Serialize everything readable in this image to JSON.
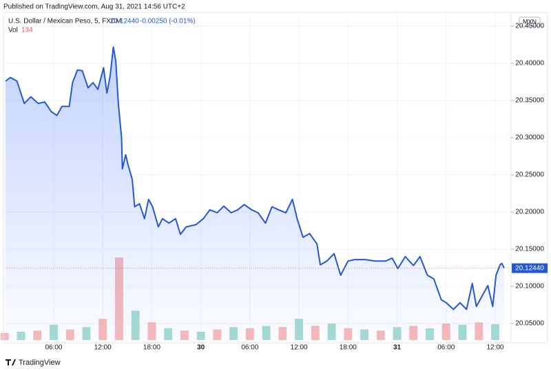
{
  "header": {
    "published": "Published on TradingView.com, Aug 31, 2021 14:56 UTC+2",
    "symbol": "U.S. Dollar / Mexican Peso, 5, FXCM",
    "price": "20.12440",
    "change": "-0.00250 (-0.01%)",
    "volume_label": "Vol",
    "volume_value": "134",
    "currency": "MXN"
  },
  "chart_data": {
    "type": "line",
    "x": [
      0.1,
      0.7,
      1.5,
      2.4,
      3.2,
      4.1,
      4.9,
      5.7,
      6.4,
      7.0,
      7.9,
      8.3,
      8.9,
      9.5,
      10.2,
      10.8,
      11.4,
      12.1,
      12.5,
      12.9,
      13.3,
      13.6,
      13.9,
      14.3,
      14.4,
      14.8,
      15.1,
      15.6,
      15.9,
      16.5,
      17.1,
      17.6,
      18.1,
      18.8,
      19.3,
      20.1,
      20.9,
      21.5,
      22.2,
      23.4,
      24.3,
      25.1,
      26.0,
      26.8,
      27.7,
      28.5,
      29.3,
      30.2,
      31.0,
      31.9,
      32.7,
      33.5,
      34.4,
      35.2,
      35.8,
      36.5,
      37.3,
      38.2,
      38.6,
      39.4,
      40.3,
      41.1,
      42.0,
      42.8,
      44.1,
      45.3,
      46.6,
      47.4,
      48.1,
      49.0,
      50.0,
      50.8,
      51.7,
      52.5,
      53.4,
      54.0,
      54.9,
      55.7,
      56.5,
      57.2,
      57.7,
      58.4,
      59.1,
      59.7,
      60.1,
      60.6,
      60.8,
      61.1
    ],
    "series": [
      {
        "name": "U.S. Dollar / Mexican Peso",
        "color": "#2157d8",
        "values": [
          20.376,
          20.381,
          20.376,
          20.346,
          20.355,
          20.346,
          20.348,
          20.335,
          20.33,
          20.342,
          20.342,
          20.374,
          20.391,
          20.39,
          20.367,
          20.374,
          20.365,
          20.394,
          20.36,
          20.383,
          20.422,
          20.402,
          20.346,
          20.3,
          20.258,
          20.277,
          20.263,
          20.244,
          20.207,
          20.211,
          20.191,
          20.217,
          20.207,
          20.18,
          20.191,
          20.185,
          20.191,
          20.17,
          20.18,
          20.183,
          20.191,
          20.203,
          20.199,
          20.208,
          20.199,
          20.203,
          20.21,
          20.203,
          20.199,
          20.185,
          20.207,
          20.203,
          20.199,
          20.217,
          20.19,
          20.166,
          20.171,
          20.157,
          20.129,
          20.134,
          20.144,
          20.115,
          20.134,
          20.136,
          20.136,
          20.134,
          20.134,
          20.138,
          20.124,
          20.14,
          20.128,
          20.14,
          20.115,
          20.11,
          20.082,
          20.078,
          20.069,
          20.078,
          20.069,
          20.104,
          20.073,
          20.087,
          20.101,
          20.073,
          20.115,
          20.129,
          20.131,
          20.1244
        ]
      }
    ],
    "xlim": [
      -0.15,
      61.94
    ],
    "xticks": [
      {
        "value": 6,
        "label": "06:00"
      },
      {
        "value": 12,
        "label": "12:00"
      },
      {
        "value": 18,
        "label": "18:00"
      },
      {
        "value": 24,
        "label": "30"
      },
      {
        "value": 30,
        "label": "06:00"
      },
      {
        "value": 36,
        "label": "12:00"
      },
      {
        "value": 42,
        "label": "18:00"
      },
      {
        "value": 48,
        "label": "31"
      },
      {
        "value": 54,
        "label": "06:00"
      },
      {
        "value": 60,
        "label": "12:00"
      }
    ],
    "ylim": [
      20.025,
      20.4685
    ],
    "yticks": [
      {
        "value": 20.05,
        "label": "20.05000"
      },
      {
        "value": 20.1,
        "label": "20.10000"
      },
      {
        "value": 20.15,
        "label": "20.15000"
      },
      {
        "value": 20.2,
        "label": "20.20000"
      },
      {
        "value": 20.25,
        "label": "20.25000"
      },
      {
        "value": 20.3,
        "label": "20.30000"
      },
      {
        "value": 20.35,
        "label": "20.35000"
      },
      {
        "value": 20.4,
        "label": "20.40000"
      },
      {
        "value": 20.45,
        "label": "20.45000"
      }
    ],
    "grid": true,
    "volume": {
      "x": [
        0,
        2,
        4,
        6,
        8,
        10,
        12,
        14,
        16,
        18,
        20,
        22,
        24,
        26,
        28,
        30,
        32,
        34,
        36,
        38,
        40,
        42,
        44,
        46,
        48,
        50,
        52,
        54,
        56,
        58,
        60
      ],
      "values": [
        60,
        70,
        80,
        130,
        90,
        110,
        180,
        700,
        250,
        150,
        100,
        80,
        70,
        90,
        110,
        100,
        120,
        110,
        180,
        120,
        140,
        100,
        90,
        80,
        110,
        120,
        100,
        140,
        130,
        150,
        134
      ],
      "colors": [
        "#f7a9a7",
        "#8fd3c8",
        "#f7a9a7",
        "#8fd3c8",
        "#f7a9a7",
        "#8fd3c8",
        "#f7a9a7",
        "#f7a9a7",
        "#8fd3c8",
        "#f7a9a7",
        "#8fd3c8",
        "#f7a9a7",
        "#8fd3c8",
        "#f7a9a7",
        "#8fd3c8",
        "#f7a9a7",
        "#8fd3c8",
        "#f7a9a7",
        "#8fd3c8",
        "#f7a9a7",
        "#8fd3c8",
        "#f7a9a7",
        "#8fd3c8",
        "#f7a9a7",
        "#8fd3c8",
        "#f7a9a7",
        "#8fd3c8",
        "#f7a9a7",
        "#8fd3c8",
        "#f7a9a7",
        "#8fd3c8"
      ]
    }
  },
  "footer": {
    "brand": "TradingView"
  }
}
